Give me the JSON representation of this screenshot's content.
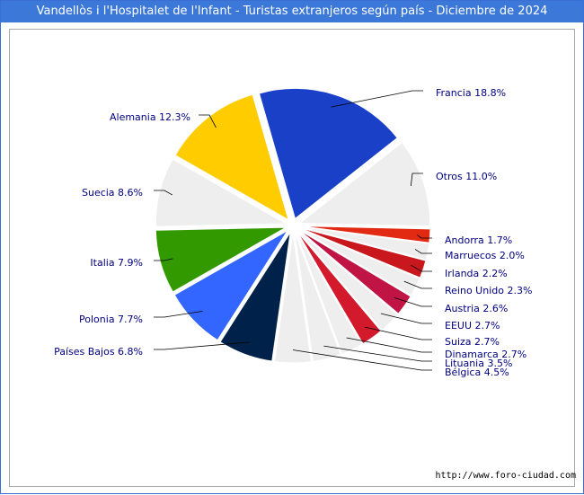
{
  "chart_data": {
    "type": "pie",
    "title": "Vandellòs i l'Hospitalet de l'Infant - Turistas extranjeros según país - Diciembre de 2024",
    "source": "http://www.foro-ciudad.com",
    "slices": [
      {
        "label": "Francia",
        "value": 18.8,
        "display": "Francia 18.8%",
        "color": "#1a40c8"
      },
      {
        "label": "Otros",
        "value": 11.0,
        "display": "Otros 11.0%",
        "color": "#eeeeee"
      },
      {
        "label": "Andorra",
        "value": 1.7,
        "display": "Andorra 1.7%",
        "color": "#e22a12"
      },
      {
        "label": "Marruecos",
        "value": 2.0,
        "display": "Marruecos 2.0%",
        "color": "#eeeeee"
      },
      {
        "label": "Irlanda",
        "value": 2.2,
        "display": "Irlanda 2.2%",
        "color": "#c8181e"
      },
      {
        "label": "Reino Unido",
        "value": 2.3,
        "display": "Reino Unido 2.3%",
        "color": "#eeeeee"
      },
      {
        "label": "Austria",
        "value": 2.6,
        "display": "Austria 2.6%",
        "color": "#c01444"
      },
      {
        "label": "EEUU",
        "value": 2.7,
        "display": "EEUU 2.7%",
        "color": "#eeeeee"
      },
      {
        "label": "Suiza",
        "value": 2.7,
        "display": "Suiza 2.7%",
        "color": "#d21a2c"
      },
      {
        "label": "Dinamarca",
        "value": 2.7,
        "display": "Dinamarca 2.7%",
        "color": "#eeeeee"
      },
      {
        "label": "Lituania",
        "value": 3.5,
        "display": "Lituania 3.5%",
        "color": "#eeeeee"
      },
      {
        "label": "Bélgica",
        "value": 4.5,
        "display": "Bélgica 4.5%",
        "color": "#eeeeee"
      },
      {
        "label": "Países Bajos",
        "value": 6.8,
        "display": "Países Bajos 6.8%",
        "color": "#00224a"
      },
      {
        "label": "Polonia",
        "value": 7.7,
        "display": "Polonia 7.7%",
        "color": "#3366ff"
      },
      {
        "label": "Italia",
        "value": 7.9,
        "display": "Italia 7.9%",
        "color": "#339900"
      },
      {
        "label": "Suecia",
        "value": 8.6,
        "display": "Suecia 8.6%",
        "color": "#eeeeee"
      },
      {
        "label": "Alemania",
        "value": 12.3,
        "display": "Alemania 12.3%",
        "color": "#ffcc00"
      }
    ]
  }
}
